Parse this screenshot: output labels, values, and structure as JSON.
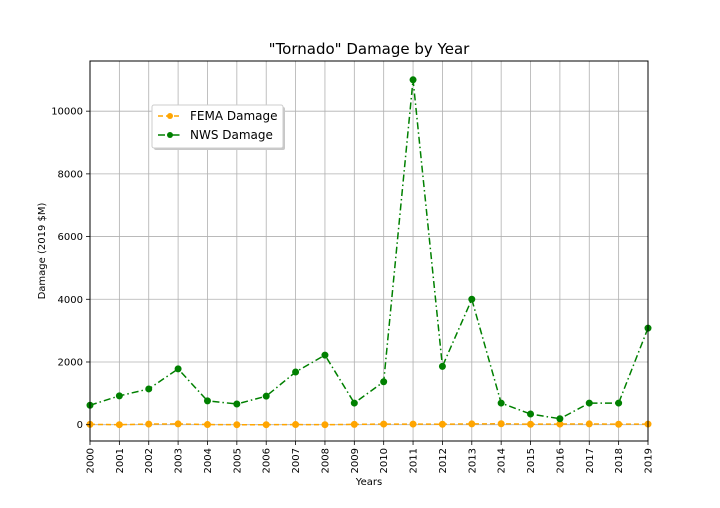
{
  "chart_data": {
    "type": "line",
    "title": "\"Tornado\" Damage by Year",
    "xlabel": "Years",
    "ylabel": "Damage (2019 $M)",
    "x": [
      "2000",
      "2001",
      "2002",
      "2003",
      "2004",
      "2005",
      "2006",
      "2007",
      "2008",
      "2009",
      "2010",
      "2011",
      "2012",
      "2013",
      "2014",
      "2015",
      "2016",
      "2017",
      "2018",
      "2019"
    ],
    "xlim": [
      2000,
      2019
    ],
    "ylim": [
      -520,
      11600
    ],
    "yticks": [
      0,
      2000,
      4000,
      6000,
      8000,
      10000
    ],
    "grid": true,
    "legend_position": "upper-left",
    "series": [
      {
        "name": "FEMA Damage",
        "color": "#FFA500",
        "linestyle": "dashed",
        "values": [
          10,
          0,
          20,
          25,
          5,
          0,
          0,
          5,
          0,
          10,
          20,
          20,
          15,
          25,
          30,
          15,
          20,
          25,
          15,
          20
        ]
      },
      {
        "name": "NWS Damage",
        "color": "#008000",
        "linestyle": "dashdot",
        "values": [
          620,
          920,
          1140,
          1780,
          760,
          660,
          910,
          1680,
          2220,
          690,
          1370,
          11000,
          1860,
          4000,
          690,
          340,
          190,
          690,
          690,
          3080
        ]
      }
    ]
  }
}
